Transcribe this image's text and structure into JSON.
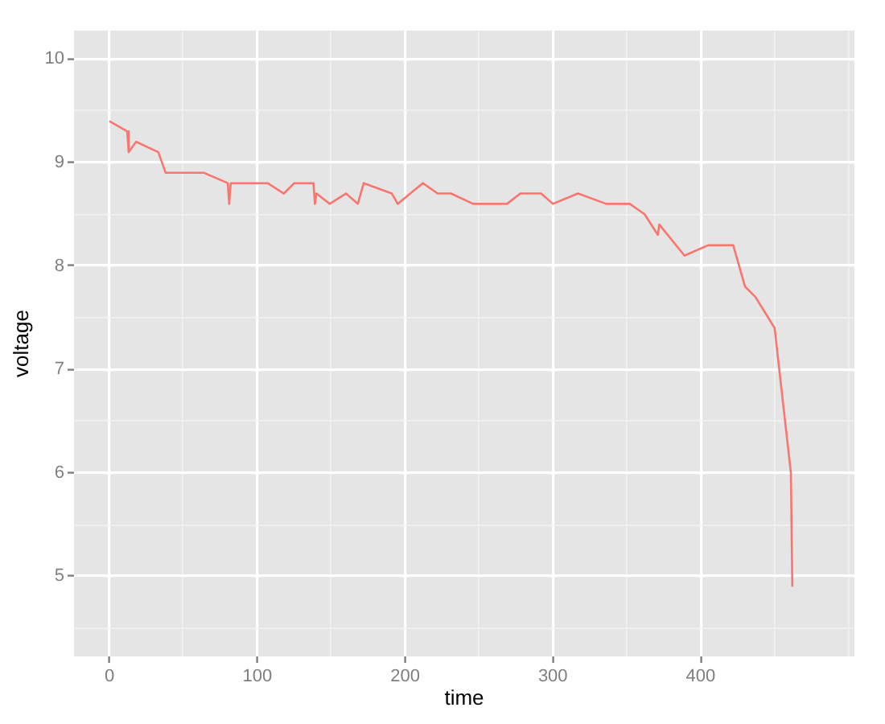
{
  "chart_data": {
    "type": "line",
    "xlabel": "time",
    "ylabel": "voltage",
    "x": [
      0,
      12,
      13,
      18,
      33,
      38,
      64,
      80,
      81,
      82,
      107,
      118,
      125,
      138,
      139,
      140,
      149,
      160,
      168,
      172,
      191,
      195,
      212,
      222,
      231,
      246,
      269,
      278,
      292,
      300,
      317,
      336,
      352,
      362,
      371,
      372,
      389,
      405,
      422,
      430,
      437,
      450,
      461,
      462
    ],
    "values": [
      9.4,
      9.3,
      9.1,
      9.2,
      9.1,
      8.9,
      8.9,
      8.8,
      8.6,
      8.8,
      8.8,
      8.7,
      8.8,
      8.8,
      8.6,
      8.7,
      8.6,
      8.7,
      8.6,
      8.8,
      8.7,
      8.6,
      8.8,
      8.7,
      8.7,
      8.6,
      8.6,
      8.7,
      8.7,
      8.6,
      8.7,
      8.6,
      8.6,
      8.5,
      8.3,
      8.4,
      8.1,
      8.2,
      8.2,
      7.8,
      7.7,
      7.4,
      6.0,
      4.9
    ],
    "color": "#f8766d",
    "marker": "none",
    "line_style": "solid",
    "xlim": [
      -24,
      504
    ],
    "ylim": [
      4.225,
      10.275
    ],
    "xticks": [
      0,
      {
        "value": 50,
        "label": null
      },
      100,
      {
        "value": 150,
        "label": null
      },
      200,
      {
        "value": 250,
        "label": null
      },
      300,
      {
        "value": 350,
        "label": null
      },
      400,
      {
        "value": 450,
        "label": null
      },
      {
        "value": 500,
        "label": null
      }
    ],
    "yticks": [
      {
        "value": 4.5,
        "label": null
      },
      5,
      {
        "value": 5.5,
        "label": null
      },
      6,
      {
        "value": 6.5,
        "label": null
      },
      7,
      {
        "value": 7.5,
        "label": null
      },
      8,
      {
        "value": 8.5,
        "label": null
      },
      9,
      {
        "value": 9.5,
        "label": null
      },
      10
    ],
    "grid": true,
    "legend": false
  }
}
